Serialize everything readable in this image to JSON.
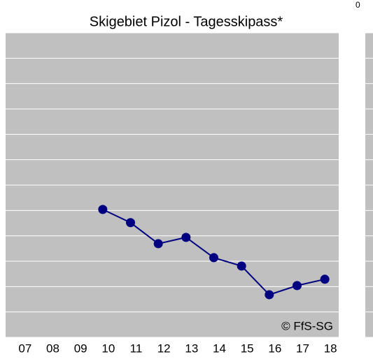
{
  "chart_data": {
    "type": "line",
    "title": "Skigebiet Pizol - Tagesskipass*",
    "annotations": [
      "© FfS-SG",
      "0"
    ],
    "categories": [
      "07",
      "08",
      "09",
      "10",
      "11",
      "12",
      "13",
      "14",
      "15",
      "16",
      "17",
      "18"
    ],
    "series": [
      {
        "color": "#000080",
        "values": [
          null,
          null,
          null,
          5.04,
          4.52,
          3.69,
          3.94,
          3.14,
          2.81,
          1.68,
          2.04,
          2.29
        ]
      }
    ],
    "ylim": [
      0,
      12
    ],
    "yticks": [
      0,
      1,
      2,
      3,
      4,
      5,
      6,
      7,
      8,
      9,
      10,
      11,
      12
    ],
    "grid": true
  }
}
